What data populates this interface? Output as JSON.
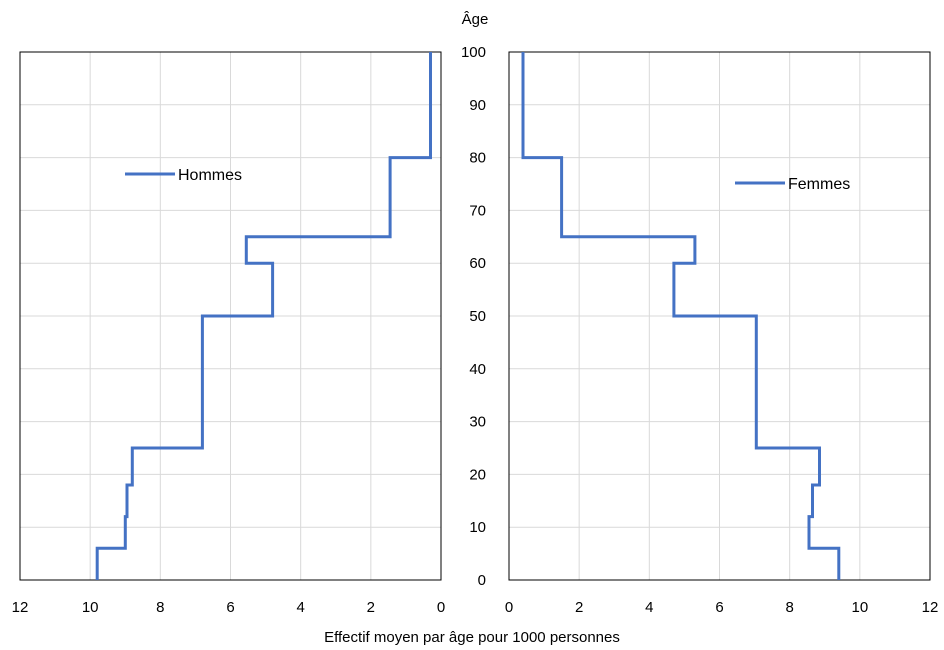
{
  "chart_data": {
    "type": "line",
    "xlabel": "Effectif moyen par âge pour 1000 personnes",
    "ylabel": "Âge",
    "ylim": [
      0,
      100
    ],
    "yticks": [
      "0",
      "10",
      "20",
      "30",
      "40",
      "50",
      "60",
      "70",
      "80",
      "90",
      "100"
    ],
    "color": "#4472c4",
    "grid": true,
    "panels": [
      {
        "id": "hommes",
        "legend": "Hommes",
        "legend_position": "upper-left",
        "x_reversed": true,
        "xlim": [
          0,
          12
        ],
        "xticks": [
          "12",
          "10",
          "8",
          "6",
          "4",
          "2",
          "0"
        ],
        "series": [
          {
            "name": "Hommes",
            "x": [
              9.8,
              9.8,
              9.0,
              9.0,
              8.95,
              8.95,
              8.8,
              8.8,
              6.8,
              6.8,
              4.8,
              4.8,
              5.55,
              5.55,
              1.45,
              1.45,
              0.3,
              0.3
            ],
            "y": [
              0,
              6,
              6,
              12,
              12,
              18,
              18,
              25,
              25,
              50,
              50,
              60,
              60,
              65,
              65,
              80,
              80,
              100
            ]
          }
        ]
      },
      {
        "id": "femmes",
        "legend": "Femmes",
        "legend_position": "upper-right",
        "x_reversed": false,
        "xlim": [
          0,
          12
        ],
        "xticks": [
          "0",
          "2",
          "4",
          "6",
          "8",
          "10",
          "12"
        ],
        "series": [
          {
            "name": "Femmes",
            "x": [
              9.4,
              9.4,
              8.55,
              8.55,
              8.65,
              8.65,
              8.85,
              8.85,
              7.05,
              7.05,
              4.7,
              4.7,
              5.3,
              5.3,
              1.5,
              1.5,
              0.4,
              0.4
            ],
            "y": [
              0,
              6,
              6,
              12,
              12,
              18,
              18,
              25,
              25,
              50,
              50,
              60,
              60,
              65,
              65,
              80,
              80,
              100
            ]
          }
        ]
      }
    ]
  }
}
